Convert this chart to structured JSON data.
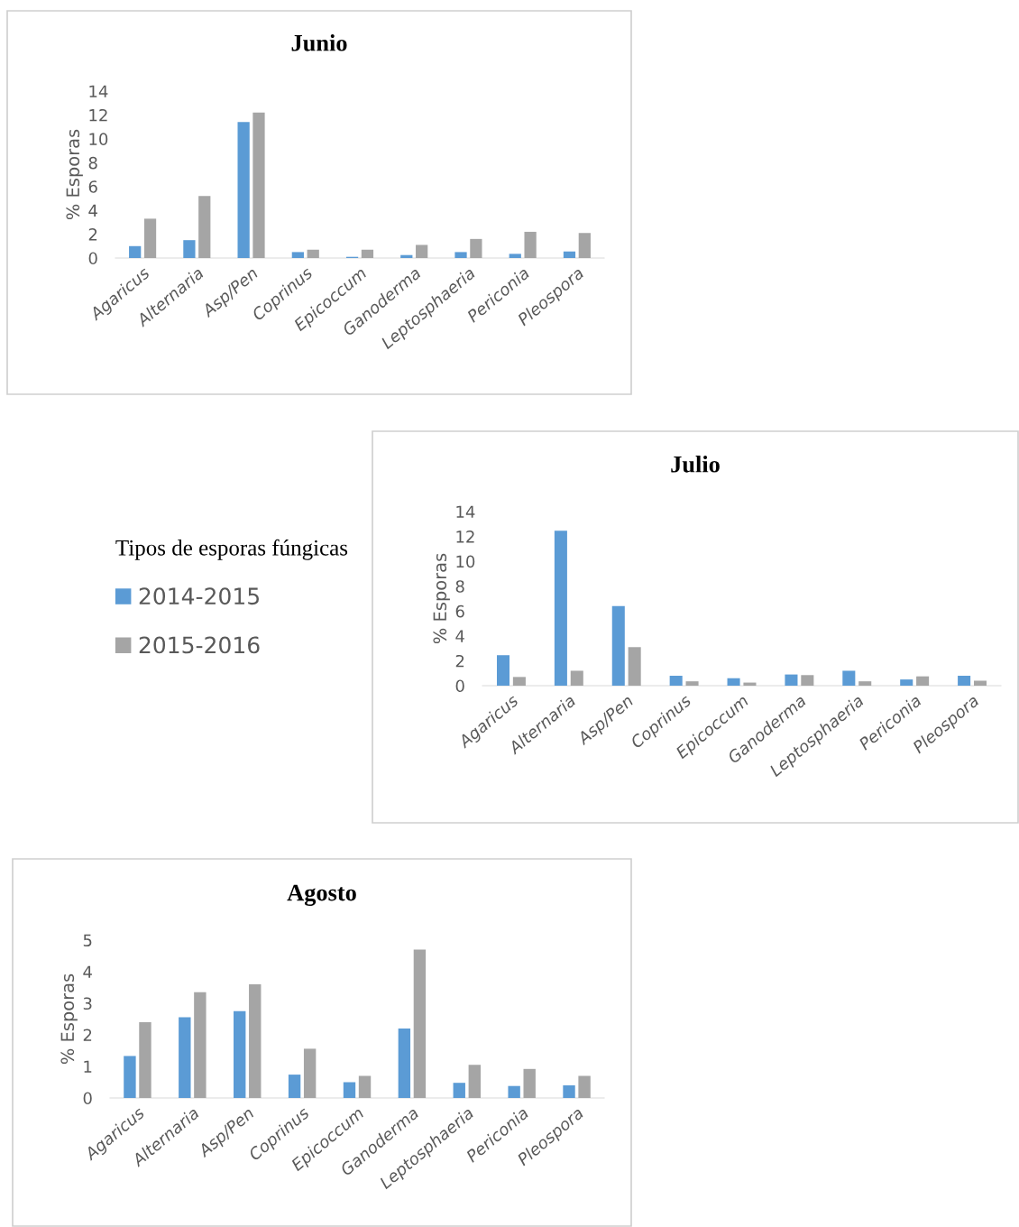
{
  "chart_data": [
    {
      "type": "bar",
      "title": "Junio",
      "ylabel": "% Esporas",
      "categories": [
        "Agaricus",
        "Alternaria",
        "Asp/Pen",
        "Coprinus",
        "Epicoccum",
        "Ganoderma",
        "Leptosphaeria",
        "Periconia",
        "Pleospora"
      ],
      "ylim": [
        0,
        14
      ],
      "yticks": [
        0,
        2,
        4,
        6,
        8,
        10,
        12,
        14
      ],
      "grid": false,
      "series": [
        {
          "color": "#5b9bd5",
          "values": [
            1.0,
            1.5,
            11.4,
            0.5,
            0.1,
            0.25,
            0.5,
            0.35,
            0.55
          ]
        },
        {
          "color": "#a5a5a5",
          "values": [
            3.3,
            5.2,
            12.2,
            0.7,
            0.7,
            1.1,
            1.6,
            2.2,
            2.1
          ]
        }
      ]
    },
    {
      "type": "bar",
      "title": "Julio",
      "ylabel": "% Esporas",
      "legend_title": "Tipos de esporas fúngicas",
      "legend": "left",
      "categories": [
        "Agaricus",
        "Alternaria",
        "Asp/Pen",
        "Coprinus",
        "Epicoccum",
        "Ganoderma",
        "Leptosphaeria",
        "Periconia",
        "Pleospora"
      ],
      "ylim": [
        0,
        14
      ],
      "yticks": [
        0,
        2,
        4,
        6,
        8,
        10,
        12,
        14
      ],
      "grid": false,
      "series": [
        {
          "name": "2014-2015",
          "color": "#5b9bd5",
          "values": [
            2.45,
            12.45,
            6.4,
            0.8,
            0.6,
            0.9,
            1.2,
            0.5,
            0.8
          ]
        },
        {
          "name": "2015-2016",
          "color": "#a5a5a5",
          "values": [
            0.7,
            1.2,
            3.1,
            0.35,
            0.25,
            0.85,
            0.35,
            0.75,
            0.4
          ]
        }
      ]
    },
    {
      "type": "bar",
      "title": "Agosto",
      "ylabel": "% Esporas",
      "categories": [
        "Agaricus",
        "Alternaria",
        "Asp/Pen",
        "Coprinus",
        "Epicoccum",
        "Ganoderma",
        "Leptosphaeria",
        "Periconia",
        "Pleospora"
      ],
      "ylim": [
        0,
        5
      ],
      "yticks": [
        0,
        1,
        2,
        3,
        4,
        5
      ],
      "grid": false,
      "series": [
        {
          "color": "#5b9bd5",
          "values": [
            1.33,
            2.56,
            2.75,
            0.74,
            0.5,
            2.2,
            0.48,
            0.38,
            0.4
          ]
        },
        {
          "color": "#a5a5a5",
          "values": [
            2.4,
            3.35,
            3.6,
            1.56,
            0.7,
            4.7,
            1.05,
            0.92,
            0.7
          ]
        }
      ]
    }
  ]
}
